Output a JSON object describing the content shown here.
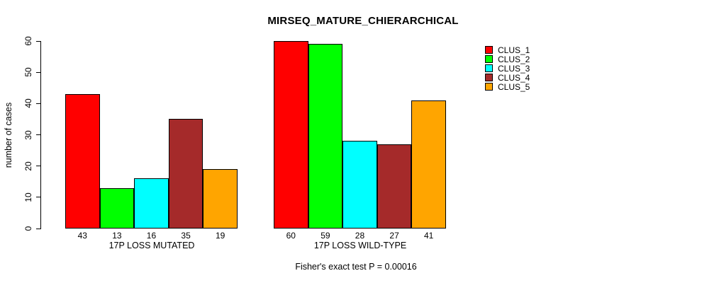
{
  "chart_data": {
    "type": "bar",
    "title": "MIRSEQ_MATURE_CHIERARCHICAL",
    "ylabel": "number of cases",
    "xlabel": "",
    "ylim": [
      0,
      60
    ],
    "yticks": [
      0,
      10,
      20,
      30,
      40,
      50,
      60
    ],
    "grid": false,
    "bar_value_labels_shown": true,
    "legend_position": "top-right",
    "legend": [
      {
        "label": "CLUS_1",
        "color": "#FF0000"
      },
      {
        "label": "CLUS_2",
        "color": "#00FF00"
      },
      {
        "label": "CLUS_3",
        "color": "#00FFFF"
      },
      {
        "label": "CLUS_4",
        "color": "#A52A2A"
      },
      {
        "label": "CLUS_5",
        "color": "#FFA500"
      }
    ],
    "groups": [
      {
        "label": "17P LOSS MUTATED",
        "values": [
          43,
          13,
          16,
          35,
          19
        ]
      },
      {
        "label": "17P LOSS WILD-TYPE",
        "values": [
          60,
          59,
          28,
          27,
          41
        ]
      }
    ],
    "footer": "Fisher's exact test P = 0.00016",
    "colors": {
      "background": "#FFFFFF",
      "axis": "#000000",
      "text": "#000000"
    }
  }
}
